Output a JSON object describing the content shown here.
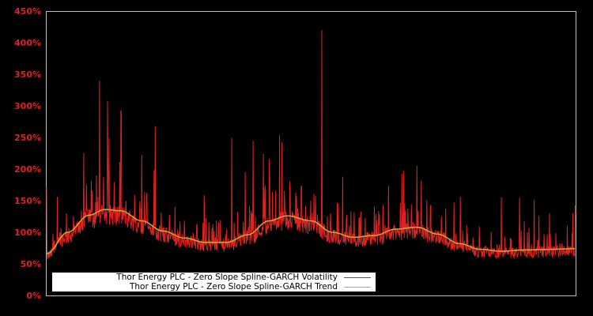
{
  "chart_data": {
    "type": "line",
    "title": "",
    "xlabel": "",
    "ylabel": "",
    "ylim": [
      0,
      450
    ],
    "yticks": [
      "0%",
      "50%",
      "100%",
      "150%",
      "200%",
      "250%",
      "300%",
      "350%",
      "400%",
      "450%"
    ],
    "grid": false,
    "legend_position": "lower left",
    "background": "#000000",
    "series": [
      {
        "name": "Thor Energy PLC - Zero Slope Spline-GARCH Volatility",
        "color": "#dd2222",
        "description": "Noisy daily volatility series; baseline follows trend minus ~15-25%, with spikes",
        "notable_spikes_pct": [
          {
            "x_frac": 0.1,
            "value": 340
          },
          {
            "x_frac": 0.115,
            "value": 308
          },
          {
            "x_frac": 0.14,
            "value": 293
          },
          {
            "x_frac": 0.18,
            "value": 222
          },
          {
            "x_frac": 0.205,
            "value": 268
          },
          {
            "x_frac": 0.07,
            "value": 225
          },
          {
            "x_frac": 0.0,
            "value": 171
          },
          {
            "x_frac": 0.35,
            "value": 249
          },
          {
            "x_frac": 0.39,
            "value": 245
          },
          {
            "x_frac": 0.44,
            "value": 254
          },
          {
            "x_frac": 0.52,
            "value": 420
          },
          {
            "x_frac": 0.56,
            "value": 188
          },
          {
            "x_frac": 0.7,
            "value": 205
          },
          {
            "x_frac": 0.77,
            "value": 147
          },
          {
            "x_frac": 0.86,
            "value": 155
          },
          {
            "x_frac": 0.995,
            "value": 130
          }
        ]
      },
      {
        "name": "Thor Energy PLC - Zero Slope Spline-GARCH Trend",
        "color": "#d4a537",
        "x_frac": [
          0.0,
          0.04,
          0.08,
          0.11,
          0.14,
          0.18,
          0.22,
          0.26,
          0.3,
          0.34,
          0.38,
          0.42,
          0.455,
          0.5,
          0.54,
          0.58,
          0.62,
          0.66,
          0.7,
          0.74,
          0.78,
          0.82,
          0.86,
          0.9,
          0.95,
          1.0
        ],
        "values": [
          66,
          100,
          127,
          136,
          134,
          118,
          102,
          91,
          84,
          84,
          96,
          118,
          126,
          118,
          100,
          92,
          95,
          105,
          108,
          97,
          82,
          73,
          70,
          72,
          73,
          74
        ]
      }
    ]
  },
  "legend": {
    "volatility_label": "Thor Energy PLC - Zero Slope Spline-GARCH Volatility",
    "trend_label": "Thor Energy PLC - Zero Slope Spline-GARCH Trend"
  },
  "colors": {
    "volatility": "#dd2222",
    "trend": "#d4a537",
    "axis": "#bbbbbb",
    "tick_label": "#dd2222"
  }
}
